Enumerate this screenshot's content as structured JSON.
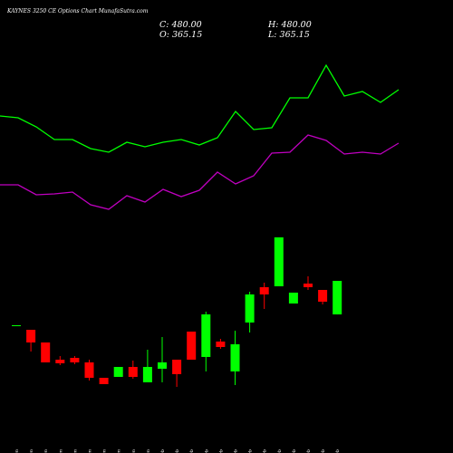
{
  "chart_data": {
    "type": "candlestick",
    "title": "KAYNES 3250 CE Options Chart MunafaSutra.com",
    "header_lines": [
      "C: 480.00",
      "H: 480.00",
      "O: 365.15",
      "L: 365.15"
    ],
    "categories": [
      "16 Jan",
      "17 Jan",
      "20 Jan",
      "21 Jan",
      "22 Jan",
      "23 Jan",
      "27 Jan",
      "28 Jan",
      "29 Jan",
      "30 Jan",
      "01 Feb",
      "03 Feb",
      "04 Feb",
      "05 Feb",
      "06 Feb",
      "07 Feb",
      "10 Feb",
      "11 Feb",
      "12 Feb",
      "13 Feb",
      "14 Feb",
      "17 Feb",
      "18 Feb"
    ],
    "open": [
      328.1,
      312.6,
      269.2,
      210.3,
      216.5,
      201,
      148.3,
      151.4,
      185.5,
      132.8,
      179.3,
      210.3,
      306.4,
      219.6,
      272.3,
      170,
      337.4,
      458.3,
      461.4,
      402.5,
      470.7,
      449,
      365.15
    ],
    "high": [
      328.1,
      312.6,
      269.2,
      222.7,
      222.7,
      210.3,
      148.3,
      185.5,
      207.2,
      244.4,
      287.8,
      210.3,
      306.4,
      374.6,
      281.6,
      309.5,
      442.8,
      473.8,
      628.8,
      439.7,
      495.5,
      449,
      480
    ],
    "low": [
      328.1,
      238.2,
      201,
      191.7,
      194.8,
      139,
      126.6,
      151.4,
      145.2,
      132.8,
      132.8,
      117.3,
      210.3,
      170,
      247.5,
      123.5,
      303.3,
      383.9,
      461.4,
      402.5,
      449,
      399.4,
      365.15
    ],
    "close": [
      328.1,
      269.2,
      201,
      197.9,
      201,
      148.3,
      126.6,
      185.5,
      151.4,
      185.5,
      201,
      160.7,
      210.3,
      365.3,
      253.7,
      263,
      433.5,
      433.5,
      628.8,
      439.7,
      458.3,
      408.7,
      480
    ],
    "up_color": "#00ff00",
    "down_color": "#ff0000",
    "series": [
      {
        "color": "#00ff00",
        "values": [
          1044.2,
          1038,
          1007,
          963.6,
          963.6,
          932.6,
          920.2,
          954.3,
          938.8,
          954.3,
          963.6,
          945,
          969.8,
          1059.7,
          997.7,
          1003.9,
          1106.2,
          1106.2,
          1217.8,
          1112.4,
          1127.9,
          1090.7,
          1134.1
        ]
      },
      {
        "color": "#c000c0",
        "values": [
          808.6,
          808.6,
          774.5,
          777.6,
          783.8,
          740.4,
          724.9,
          771.4,
          749.7,
          793.1,
          768.3,
          790,
          852,
          811.7,
          839.6,
          917.1,
          920.2,
          979.1,
          960.5,
          914,
          920.2,
          914,
          951.2
        ]
      }
    ],
    "ylim": [
      77,
      1441
    ]
  }
}
